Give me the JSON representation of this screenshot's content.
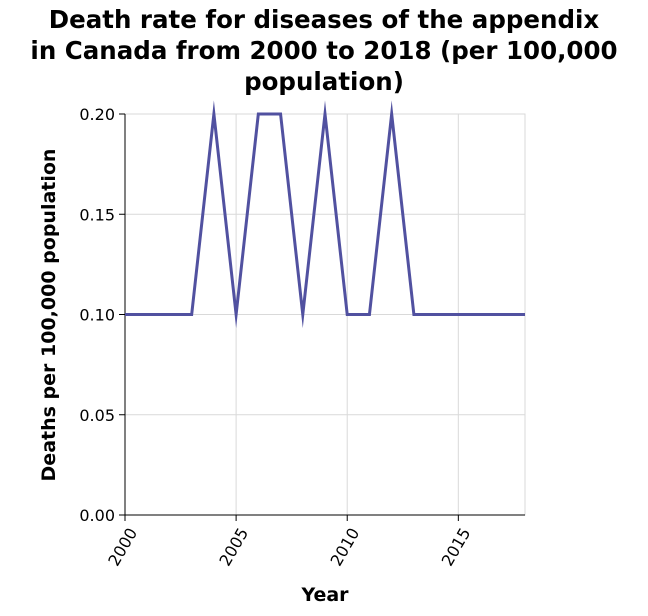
{
  "chart_data": {
    "type": "line",
    "title_lines": [
      "Death rate for diseases of the appendix",
      "in Canada from 2000 to 2018 (per 100,000",
      "population)"
    ],
    "xlabel": "Year",
    "ylabel": "Deaths per 100,000 population",
    "xlim": [
      2000,
      2018
    ],
    "ylim": [
      0,
      0.2
    ],
    "x_ticks": [
      2000,
      2005,
      2010,
      2015
    ],
    "y_ticks": [
      "0.00",
      "0.05",
      "0.10",
      "0.15",
      "0.20"
    ],
    "grid": true,
    "line_color": "#5151a0",
    "series": [
      {
        "x": [
          2000,
          2001,
          2002,
          2003,
          2004,
          2005,
          2006,
          2007,
          2008,
          2009,
          2010,
          2011,
          2012,
          2013,
          2014,
          2015,
          2016,
          2017,
          2018
        ],
        "values": [
          0.1,
          0.1,
          0.1,
          0.1,
          0.2,
          0.1,
          0.2,
          0.2,
          0.1,
          0.2,
          0.1,
          0.1,
          0.2,
          0.1,
          0.1,
          0.1,
          0.1,
          0.1,
          0.1
        ]
      }
    ]
  }
}
